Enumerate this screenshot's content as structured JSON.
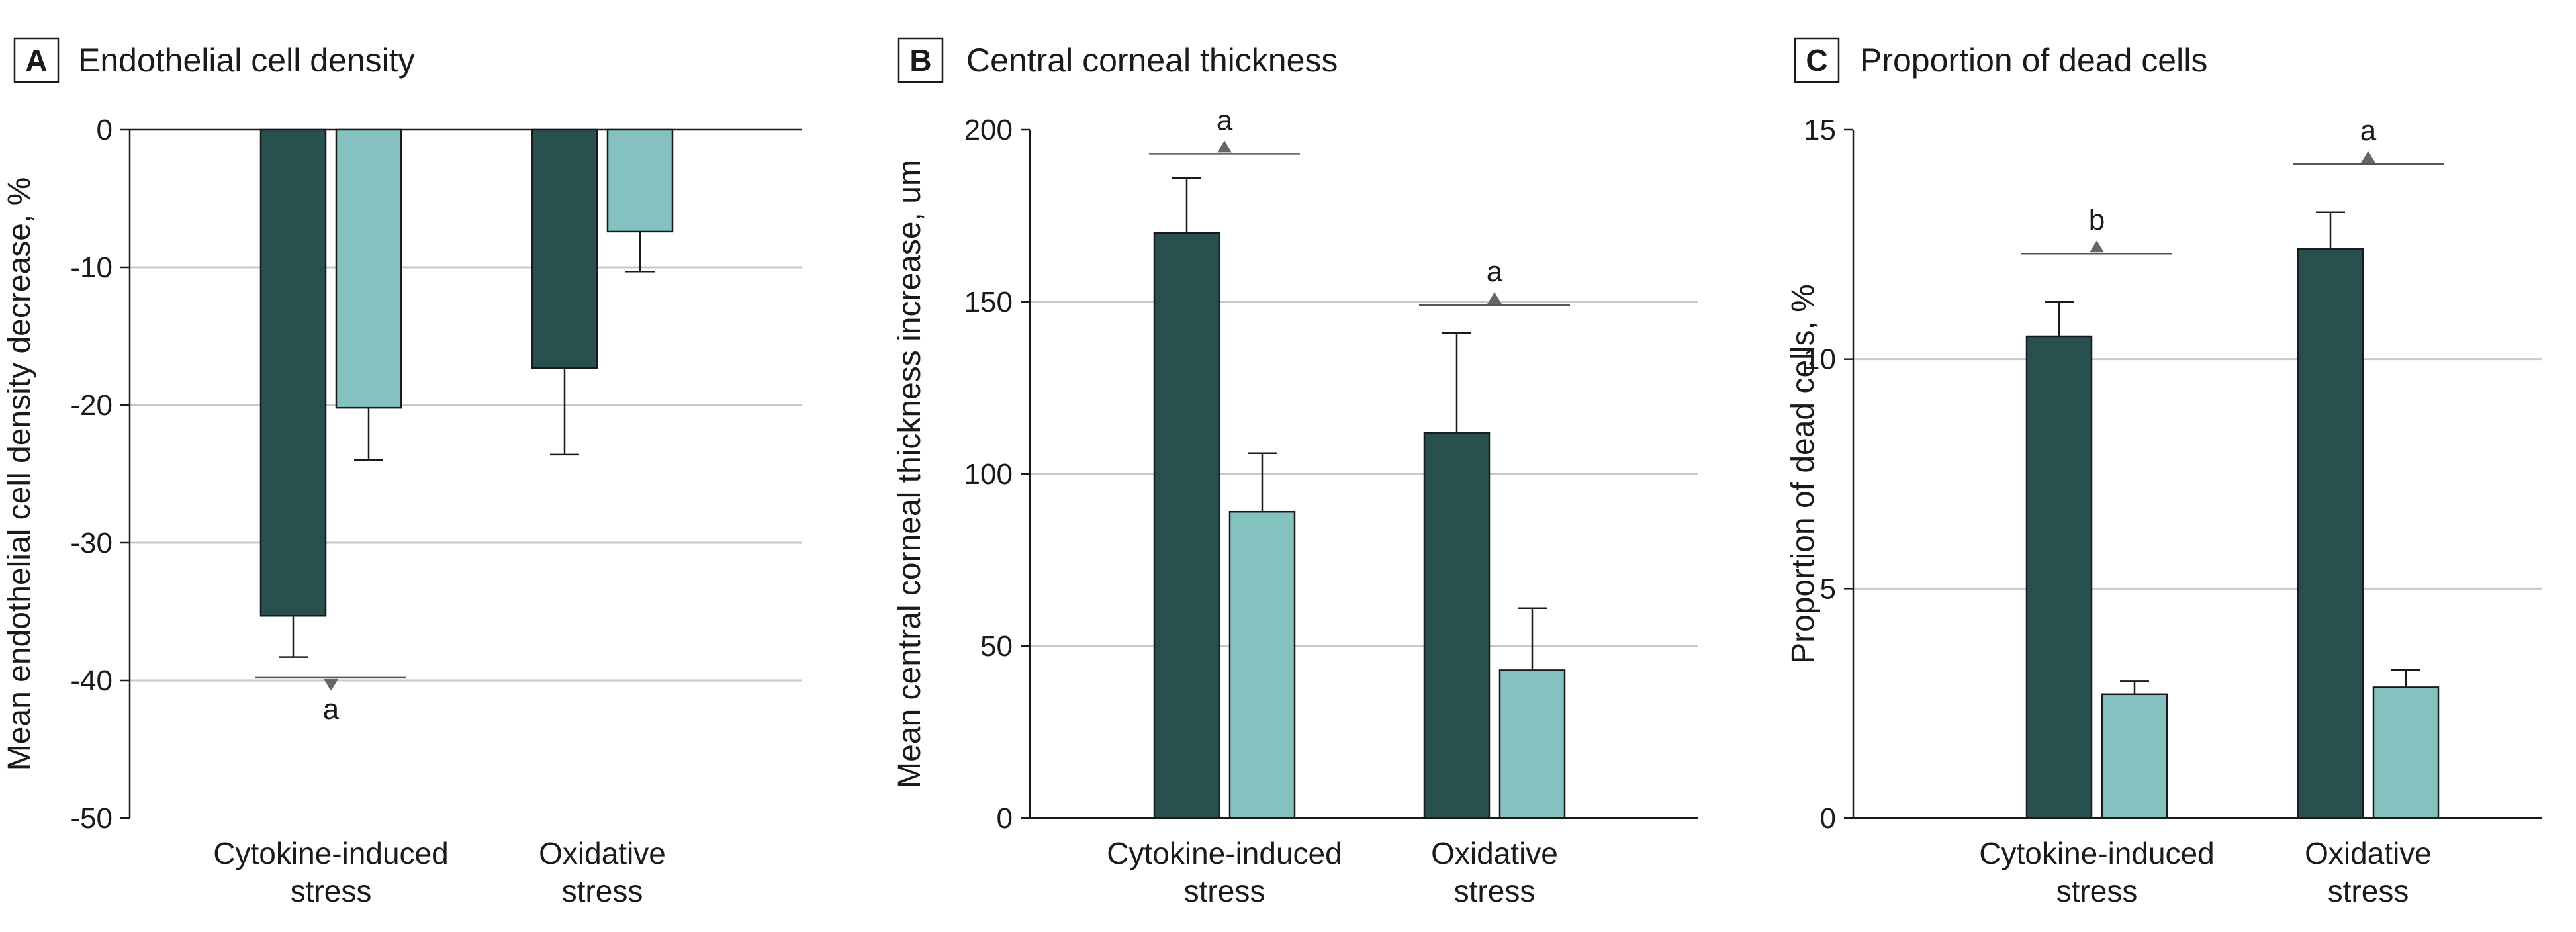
{
  "colors": {
    "treated": "#27504f",
    "control": "#84c2c0",
    "bar_edge": "#1a1a1a",
    "grid": "#c8c8c8",
    "marker": "#666666"
  },
  "chart_data": [
    {
      "panel": "A",
      "type": "bar",
      "title": "Endothelial cell density",
      "xlabel": "",
      "ylabel": "Mean endothelial cell density decrease, %",
      "ylim": [
        -50,
        0
      ],
      "yticks": [
        0,
        -10,
        -20,
        -30,
        -40,
        -50
      ],
      "ytick_labels": [
        "0",
        "-10",
        "-20",
        "-30",
        "-40",
        "-50"
      ],
      "categories": [
        {
          "line1": "Cytokine-induced",
          "line2": "stress"
        },
        {
          "line1": "Oxidative",
          "line2": "stress"
        }
      ],
      "series": [
        {
          "color_key": "treated",
          "values": [
            -35.3,
            -17.3
          ],
          "errors": [
            3.0,
            6.3
          ]
        },
        {
          "color_key": "control",
          "values": [
            -20.2,
            -7.4
          ],
          "errors": [
            3.8,
            2.9
          ]
        }
      ],
      "annotations": [
        {
          "category": 0,
          "letter": "a",
          "value": -39.8,
          "direction": "down"
        }
      ]
    },
    {
      "panel": "B",
      "type": "bar",
      "title": "Central corneal thickness",
      "xlabel": "",
      "ylabel": "Mean central corneal thickness increase, um",
      "ylim": [
        0,
        200
      ],
      "yticks": [
        0,
        50,
        100,
        150,
        200
      ],
      "ytick_labels": [
        "0",
        "50",
        "100",
        "150",
        "200"
      ],
      "categories": [
        {
          "line1": "Cytokine-induced",
          "line2": "stress"
        },
        {
          "line1": "Oxidative",
          "line2": "stress"
        }
      ],
      "series": [
        {
          "color_key": "treated",
          "values": [
            170,
            112
          ],
          "errors": [
            16,
            29
          ]
        },
        {
          "color_key": "control",
          "values": [
            89,
            43
          ],
          "errors": [
            17,
            18
          ]
        }
      ],
      "annotations": [
        {
          "category": 0,
          "letter": "a",
          "value": 193,
          "direction": "up"
        },
        {
          "category": 1,
          "letter": "a",
          "value": 149,
          "direction": "up"
        }
      ]
    },
    {
      "panel": "C",
      "type": "bar",
      "title": "Proportion of dead cells",
      "xlabel": "",
      "ylabel": "Proportion of dead cells, %",
      "ylim": [
        0,
        15
      ],
      "yticks": [
        0,
        5,
        10,
        15
      ],
      "ytick_labels": [
        "0",
        "5",
        "10",
        "15"
      ],
      "categories": [
        {
          "line1": "Cytokine-induced",
          "line2": "stress"
        },
        {
          "line1": "Oxidative",
          "line2": "stress"
        }
      ],
      "series": [
        {
          "color_key": "treated",
          "values": [
            10.5,
            12.4
          ],
          "errors": [
            0.75,
            0.8
          ]
        },
        {
          "color_key": "control",
          "values": [
            2.7,
            2.85
          ],
          "errors": [
            0.28,
            0.38
          ]
        }
      ],
      "annotations": [
        {
          "category": 0,
          "letter": "b",
          "value": 12.3,
          "direction": "up"
        },
        {
          "category": 1,
          "letter": "a",
          "value": 14.25,
          "direction": "up"
        }
      ]
    }
  ]
}
